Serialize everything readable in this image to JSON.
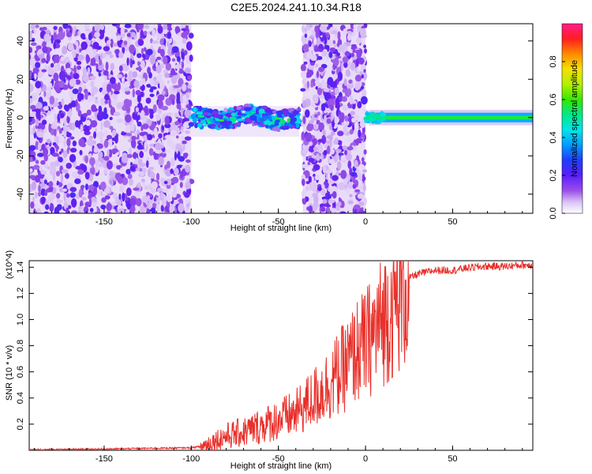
{
  "title": "C2E5.2024.241.10.34.R18",
  "chart_data": [
    {
      "type": "heatmap",
      "xlabel": "Height of straight line (km)",
      "ylabel": "Frequency (Hz)",
      "xlim": [
        -193,
        96
      ],
      "ylim": [
        -50,
        49
      ],
      "xticks": [
        -150,
        -100,
        -50,
        0,
        50
      ],
      "yticks": [
        -40,
        -20,
        0,
        20,
        40
      ],
      "colorbar": {
        "label": "Normalized spectral amplitude",
        "range": [
          0,
          1
        ],
        "ticks": [
          "0.0",
          "0.2",
          "0.4",
          "0.6",
          "0.8"
        ]
      },
      "regions": [
        {
          "x_range": [
            -193,
            -100
          ],
          "pattern": "broadband noise"
        },
        {
          "x_range": [
            -100,
            -38
          ],
          "pattern": "narrow band near 0 Hz"
        },
        {
          "x_range": [
            -36,
            0
          ],
          "pattern": "broadband noise"
        },
        {
          "x_range": [
            0,
            96
          ],
          "pattern": "strong narrow band at 0 Hz"
        }
      ]
    },
    {
      "type": "line",
      "xlabel": "Height of straight line (km)",
      "ylabel": "SNR (10 * v/v)",
      "y_multiplier": "(x10^4)",
      "xlim": [
        -193,
        96
      ],
      "ylim": [
        0,
        1.45
      ],
      "xticks": [
        -150,
        -100,
        -50,
        0,
        50
      ],
      "yticks": [
        0.2,
        0.4,
        0.6,
        0.8,
        1.0,
        1.2,
        1.4
      ],
      "series": [
        {
          "color": "#e8302a",
          "x": [
            -193,
            -170,
            -150,
            -130,
            -110,
            -100,
            -95,
            -90,
            -80,
            -70,
            -60,
            -50,
            -40,
            -30,
            -20,
            -10,
            -5,
            0,
            5,
            10,
            15,
            20,
            25,
            30,
            40,
            50,
            60,
            70,
            80,
            90,
            96
          ],
          "y": [
            0.005,
            0.008,
            0.01,
            0.015,
            0.018,
            0.02,
            0.03,
            0.06,
            0.12,
            0.15,
            0.2,
            0.25,
            0.3,
            0.42,
            0.55,
            0.7,
            0.8,
            0.85,
            0.95,
            1.05,
            1.15,
            1.25,
            1.32,
            1.35,
            1.38,
            1.38,
            1.4,
            1.41,
            1.41,
            1.42,
            1.42
          ]
        }
      ]
    }
  ]
}
